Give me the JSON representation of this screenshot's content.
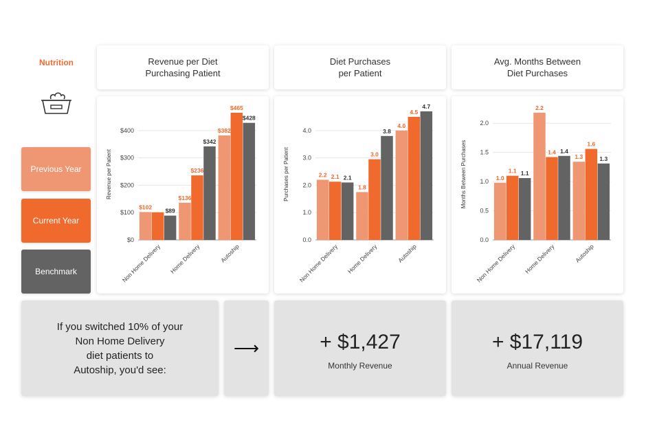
{
  "section_label": "Nutrition",
  "icon": "pet-food-bowl-icon",
  "legend": [
    {
      "label": "Previous Year",
      "color": "#ef9672"
    },
    {
      "label": "Current Year",
      "color": "#ef6a2c"
    },
    {
      "label": "Benchmark",
      "color": "#636363"
    }
  ],
  "chart_headers": [
    "Revenue per Diet\nPurchasing Patient",
    "Diet Purchases\nper Patient",
    "Avg. Months Between\nDiet Purchases"
  ],
  "chart_data": [
    {
      "type": "bar",
      "categories": [
        "Non Home Delivery",
        "Home Delivery",
        "Autoship"
      ],
      "ylabel": "Revenue per Patient",
      "ylim": [
        0,
        480
      ],
      "yticks": [
        0,
        100,
        200,
        300,
        400
      ],
      "ytick_labels": [
        "$0",
        "$100",
        "$200",
        "$300",
        "$400"
      ],
      "series": [
        {
          "name": "Previous Year",
          "color": "#ef9672",
          "values": [
            102,
            136,
            382
          ],
          "labels": [
            "$102",
            "$136",
            "$382"
          ]
        },
        {
          "name": "Current Year",
          "color": "#ef6a2c",
          "values": [
            101,
            236,
            465
          ],
          "labels": [
            "",
            "$236",
            "$465"
          ]
        },
        {
          "name": "Benchmark",
          "color": "#636363",
          "values": [
            89,
            342,
            428
          ],
          "labels": [
            "$89",
            "$342",
            "$428"
          ]
        }
      ]
    },
    {
      "type": "bar",
      "categories": [
        "Non Home Delivery",
        "Home Delivery",
        "Autoship"
      ],
      "ylabel": "Purchases per Patient",
      "ylim": [
        0,
        4.8
      ],
      "yticks": [
        0,
        1,
        2,
        3,
        4
      ],
      "ytick_labels": [
        "0.0",
        "1.0",
        "2.0",
        "3.0",
        "4.0"
      ],
      "series": [
        {
          "name": "Previous Year",
          "color": "#ef9672",
          "values": [
            2.2,
            1.75,
            4.0
          ],
          "labels": [
            "2.2",
            "1.8",
            "4.0"
          ]
        },
        {
          "name": "Current Year",
          "color": "#ef6a2c",
          "values": [
            2.13,
            2.95,
            4.5
          ],
          "labels": [
            "2.1",
            "3.0",
            "4.5"
          ]
        },
        {
          "name": "Benchmark",
          "color": "#636363",
          "values": [
            2.1,
            3.8,
            4.7
          ],
          "labels": [
            "2.1",
            "3.8",
            "4.7"
          ]
        }
      ]
    },
    {
      "type": "bar",
      "categories": [
        "Non Home Delivery",
        "Home Delivery",
        "Autoship"
      ],
      "ylabel": "Months Between Purchases",
      "ylim": [
        0,
        2.25
      ],
      "yticks": [
        0,
        0.5,
        1,
        1.5,
        2
      ],
      "ytick_labels": [
        "0.0",
        "0.5",
        "1.0",
        "1.5",
        "2.0"
      ],
      "series": [
        {
          "name": "Previous Year",
          "color": "#ef9672",
          "values": [
            0.98,
            2.18,
            1.34
          ],
          "labels": [
            "1.0",
            "2.2",
            "1.3"
          ]
        },
        {
          "name": "Current Year",
          "color": "#ef6a2c",
          "values": [
            1.1,
            1.42,
            1.56
          ],
          "labels": [
            "1.1",
            "1.4",
            "1.6"
          ]
        },
        {
          "name": "Benchmark",
          "color": "#636363",
          "values": [
            1.06,
            1.44,
            1.31
          ],
          "labels": [
            "1.1",
            "1.4",
            "1.3"
          ]
        }
      ]
    }
  ],
  "bottom": {
    "message": "If you switched 10% of your\nNon Home Delivery\ndiet patients to\nAutoship, you'd see:",
    "arrow": "⟶",
    "monthly_value": "+ $1,427",
    "monthly_label": "Monthly Revenue",
    "annual_value": "+ $17,119",
    "annual_label": "Annual Revenue"
  }
}
